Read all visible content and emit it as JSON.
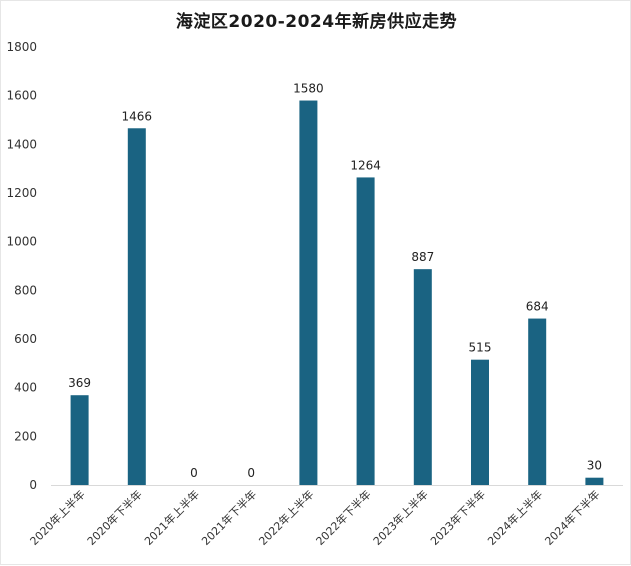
{
  "chart_data": {
    "type": "bar",
    "title": "海淀区2020-2024年新房供应走势",
    "xlabel": "",
    "ylabel": "",
    "categories": [
      "2020年上半年",
      "2020年下半年",
      "2021年上半年",
      "2021年下半年",
      "2022年上半年",
      "2022年下半年",
      "2023年上半年",
      "2023年下半年",
      "2024年上半年",
      "2024年下半年"
    ],
    "values": [
      369,
      1466,
      0,
      0,
      1580,
      1264,
      887,
      515,
      684,
      30
    ],
    "data_labels": [
      "369",
      "1466",
      "0",
      "0",
      "1580",
      "1264",
      "887",
      "515",
      "684",
      "30"
    ],
    "ylim": [
      0,
      1800
    ],
    "yticks": [
      0,
      200,
      400,
      600,
      800,
      1000,
      1200,
      1400,
      1600,
      1800
    ],
    "grid": false,
    "legend": "none",
    "bar_color": "#1a6382",
    "axis_color": "#d9d9d9"
  }
}
